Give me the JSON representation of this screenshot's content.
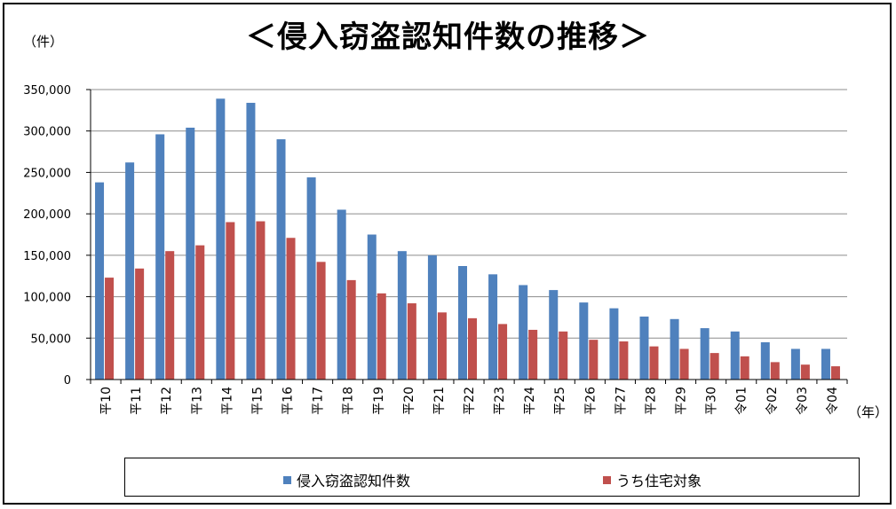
{
  "chart_data": {
    "type": "bar",
    "title": "＜侵入窃盗認知件数の推移＞",
    "ylabel": "（件）",
    "xlabel": "（年）",
    "ylim": [
      0,
      350000
    ],
    "yticks": [
      0,
      50000,
      100000,
      150000,
      200000,
      250000,
      300000,
      350000
    ],
    "ytick_labels": [
      "0",
      "50,000",
      "100,000",
      "150,000",
      "200,000",
      "250,000",
      "300,000",
      "350,000"
    ],
    "grid": true,
    "legend": "bottom",
    "categories": [
      "平10",
      "平11",
      "平12",
      "平13",
      "平14",
      "平15",
      "平16",
      "平17",
      "平18",
      "平19",
      "平20",
      "平21",
      "平22",
      "平23",
      "平24",
      "平25",
      "平26",
      "平27",
      "平28",
      "平29",
      "平30",
      "令01",
      "令02",
      "令03",
      "令04"
    ],
    "series": [
      {
        "name": "侵入窃盗認知件数",
        "color": "#4f81bd",
        "values": [
          238000,
          262000,
          296000,
          304000,
          339000,
          334000,
          290000,
          244000,
          205000,
          175000,
          155000,
          150000,
          137000,
          127000,
          114000,
          108000,
          93000,
          86000,
          76000,
          73000,
          62000,
          58000,
          45000,
          37000,
          37000
        ]
      },
      {
        "name": "うち住宅対象",
        "color": "#c0504d",
        "values": [
          123000,
          134000,
          155000,
          162000,
          190000,
          191000,
          171000,
          142000,
          120000,
          104000,
          92000,
          81000,
          74000,
          67000,
          60000,
          58000,
          48000,
          46000,
          40000,
          37000,
          32000,
          28000,
          21000,
          18000,
          16000
        ]
      }
    ]
  }
}
